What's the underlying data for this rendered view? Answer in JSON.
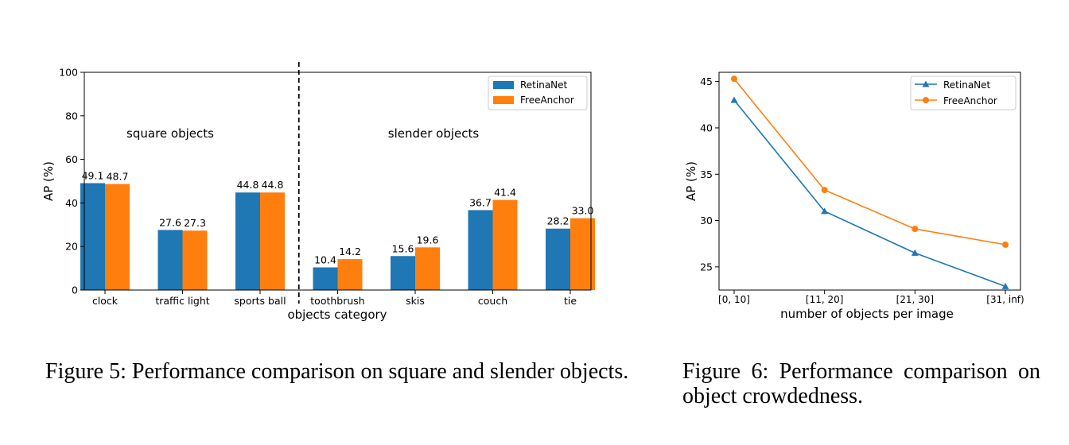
{
  "chart_data": [
    {
      "type": "bar",
      "title": "",
      "xlabel": "objects category",
      "ylabel": "AP (%)",
      "ylim": [
        0,
        100
      ],
      "yticks": [
        "0",
        "20",
        "40",
        "60",
        "80",
        "100"
      ],
      "categories": [
        "clock",
        "traffic light",
        "sports ball",
        "toothbrush",
        "skis",
        "couch",
        "tie"
      ],
      "series": [
        {
          "name": "RetinaNet",
          "color": "#1f77b4",
          "values": [
            49.1,
            27.6,
            44.8,
            10.4,
            15.6,
            36.7,
            28.2
          ],
          "labels": [
            "49.1",
            "27.6",
            "44.8",
            "10.4",
            "15.6",
            "36.7",
            "28.2"
          ]
        },
        {
          "name": "FreeAnchor",
          "color": "#ff7f0e",
          "values": [
            48.7,
            27.3,
            44.8,
            14.2,
            19.6,
            41.4,
            33.0
          ],
          "labels": [
            "48.7",
            "27.3",
            "44.8",
            "14.2",
            "19.6",
            "41.4",
            "33.0"
          ]
        }
      ],
      "annotations": [
        "square objects",
        "slender objects"
      ],
      "divider_after_category": 2,
      "legend": "top-right"
    },
    {
      "type": "line",
      "title": "",
      "xlabel": "number of objects per image",
      "ylabel": "AP (%)",
      "ylim": [
        22.5,
        46
      ],
      "yticks": [
        "25",
        "30",
        "35",
        "40",
        "45"
      ],
      "categories": [
        "[0, 10]",
        "[11, 20]",
        "[21, 30]",
        "[31, inf)"
      ],
      "series": [
        {
          "name": "RetinaNet",
          "color": "#1f77b4",
          "marker": "triangle",
          "values": [
            43.0,
            31.0,
            26.5,
            22.9
          ]
        },
        {
          "name": "FreeAnchor",
          "color": "#ff7f0e",
          "marker": "circle",
          "values": [
            45.3,
            33.3,
            29.1,
            27.4
          ]
        }
      ],
      "legend": "top-right"
    }
  ],
  "captions": {
    "figure5": "Figure 5: Performance comparison on square and slender objects.",
    "figure6": "Figure 6: Performance comparison on object crowdedness."
  }
}
